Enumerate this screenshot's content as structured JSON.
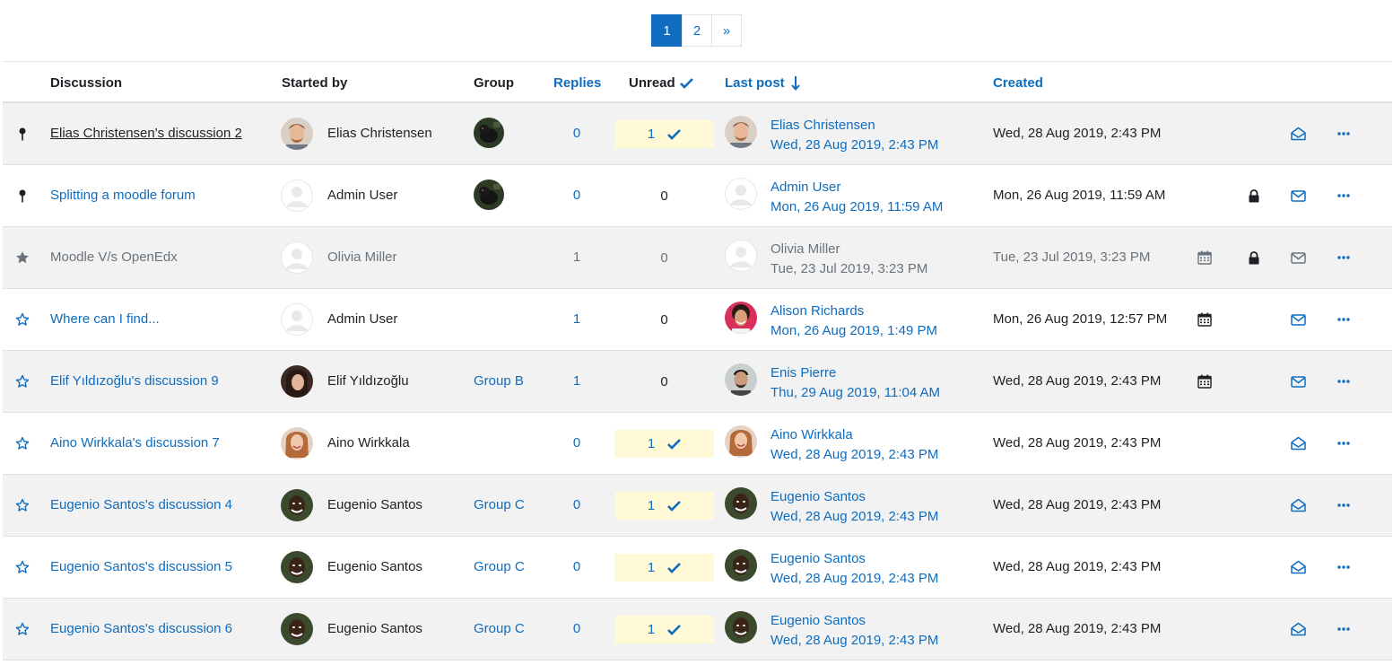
{
  "pagination": {
    "pages": [
      "1",
      "2"
    ],
    "next": "»"
  },
  "columns": {
    "discussion": "Discussion",
    "started_by": "Started by",
    "group": "Group",
    "replies": "Replies",
    "unread": "Unread",
    "last_post": "Last post",
    "created": "Created"
  },
  "colors": {
    "link": "#0f6cbf",
    "unread_highlight": "#fff9d6",
    "shaded_row": "#f2f2f2"
  },
  "rows": [
    {
      "pin": "pin-icon",
      "title": "Elias Christensen's discussion 2",
      "started_by": "Elias Christensen",
      "group": "",
      "replies": "0",
      "unread": "1",
      "last_name": "Elias Christensen",
      "last_date": "Wed, 28 Aug 2019, 2:43 PM",
      "created": "Wed, 28 Aug 2019, 2:43 PM"
    },
    {
      "pin": "pin-icon",
      "title": "Splitting a moodle forum",
      "started_by": "Admin User",
      "group": "",
      "replies": "0",
      "unread": "0",
      "last_name": "Admin User",
      "last_date": "Mon, 26 Aug 2019, 11:59 AM",
      "created": "Mon, 26 Aug 2019, 11:59 AM"
    },
    {
      "pin": "star-filled-icon",
      "title": "Moodle V/s OpenEdx",
      "started_by": "Olivia Miller",
      "group": "",
      "replies": "1",
      "unread": "0",
      "last_name": "Olivia Miller",
      "last_date": "Tue, 23 Jul 2019, 3:23 PM",
      "created": "Tue, 23 Jul 2019, 3:23 PM"
    },
    {
      "pin": "star-outline-icon",
      "title": "Where can I find...",
      "started_by": "Admin User",
      "group": "",
      "replies": "1",
      "unread": "0",
      "last_name": "Alison Richards",
      "last_date": "Mon, 26 Aug 2019, 1:49 PM",
      "created": "Mon, 26 Aug 2019, 12:57 PM"
    },
    {
      "pin": "star-outline-icon",
      "title": "Elif Yıldızoğlu's discussion 9",
      "started_by": "Elif Yıldızoğlu",
      "group": "Group B",
      "replies": "1",
      "unread": "0",
      "last_name": "Enis Pierre",
      "last_date": "Thu, 29 Aug 2019, 11:04 AM",
      "created": "Wed, 28 Aug 2019, 2:43 PM"
    },
    {
      "pin": "star-outline-icon",
      "title": "Aino Wirkkala's discussion 7",
      "started_by": "Aino Wirkkala",
      "group": "",
      "replies": "0",
      "unread": "1",
      "last_name": "Aino Wirkkala",
      "last_date": "Wed, 28 Aug 2019, 2:43 PM",
      "created": "Wed, 28 Aug 2019, 2:43 PM"
    },
    {
      "pin": "star-outline-icon",
      "title": "Eugenio Santos's discussion 4",
      "started_by": "Eugenio Santos",
      "group": "Group C",
      "replies": "0",
      "unread": "1",
      "last_name": "Eugenio Santos",
      "last_date": "Wed, 28 Aug 2019, 2:43 PM",
      "created": "Wed, 28 Aug 2019, 2:43 PM"
    },
    {
      "pin": "star-outline-icon",
      "title": "Eugenio Santos's discussion 5",
      "started_by": "Eugenio Santos",
      "group": "Group C",
      "replies": "0",
      "unread": "1",
      "last_name": "Eugenio Santos",
      "last_date": "Wed, 28 Aug 2019, 2:43 PM",
      "created": "Wed, 28 Aug 2019, 2:43 PM"
    },
    {
      "pin": "star-outline-icon",
      "title": "Eugenio Santos's discussion 6",
      "started_by": "Eugenio Santos",
      "group": "Group C",
      "replies": "0",
      "unread": "1",
      "last_name": "Eugenio Santos",
      "last_date": "Wed, 28 Aug 2019, 2:43 PM",
      "created": "Wed, 28 Aug 2019, 2:43 PM"
    }
  ]
}
